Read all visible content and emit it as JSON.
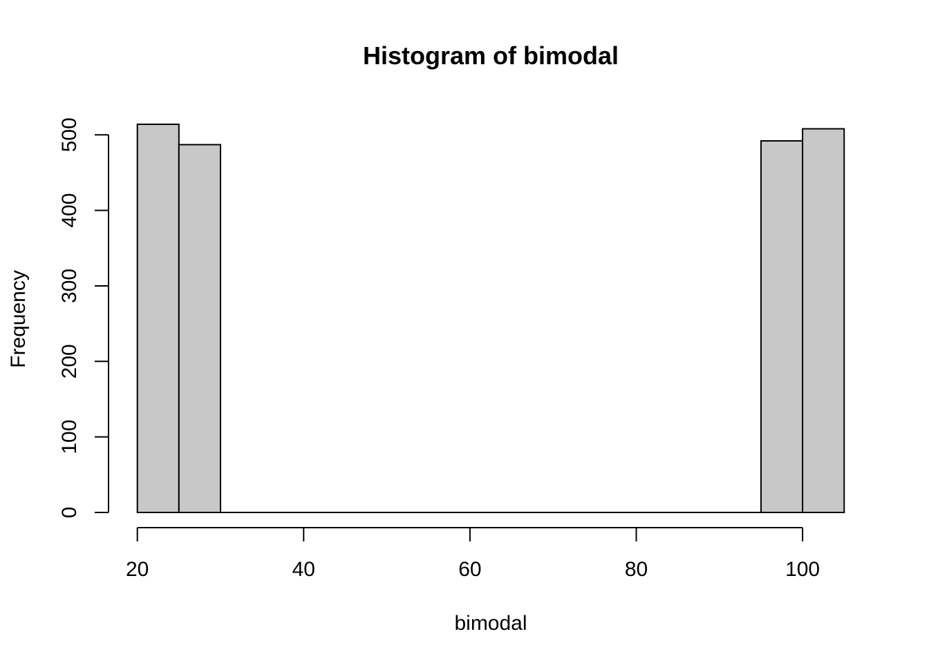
{
  "chart_data": {
    "type": "bar",
    "title": "Histogram of bimodal",
    "xlabel": "bimodal",
    "ylabel": "Frequency",
    "bins": [
      {
        "start": 20,
        "end": 25,
        "count": 514
      },
      {
        "start": 25,
        "end": 30,
        "count": 487
      },
      {
        "start": 30,
        "end": 35,
        "count": 0
      },
      {
        "start": 35,
        "end": 40,
        "count": 0
      },
      {
        "start": 40,
        "end": 45,
        "count": 0
      },
      {
        "start": 45,
        "end": 50,
        "count": 0
      },
      {
        "start": 50,
        "end": 55,
        "count": 0
      },
      {
        "start": 55,
        "end": 60,
        "count": 0
      },
      {
        "start": 60,
        "end": 65,
        "count": 0
      },
      {
        "start": 65,
        "end": 70,
        "count": 0
      },
      {
        "start": 70,
        "end": 75,
        "count": 0
      },
      {
        "start": 75,
        "end": 80,
        "count": 0
      },
      {
        "start": 80,
        "end": 85,
        "count": 0
      },
      {
        "start": 85,
        "end": 90,
        "count": 0
      },
      {
        "start": 90,
        "end": 95,
        "count": 0
      },
      {
        "start": 95,
        "end": 100,
        "count": 492
      },
      {
        "start": 100,
        "end": 105,
        "count": 508
      }
    ],
    "xlim": [
      20,
      105
    ],
    "ylim": [
      0,
      514
    ],
    "xticks": [
      20,
      40,
      60,
      80,
      100
    ],
    "yticks": [
      0,
      100,
      200,
      300,
      400,
      500
    ],
    "grid": false,
    "colors": {
      "bar_fill": "#c8c8c8",
      "bar_stroke": "#000000"
    }
  }
}
